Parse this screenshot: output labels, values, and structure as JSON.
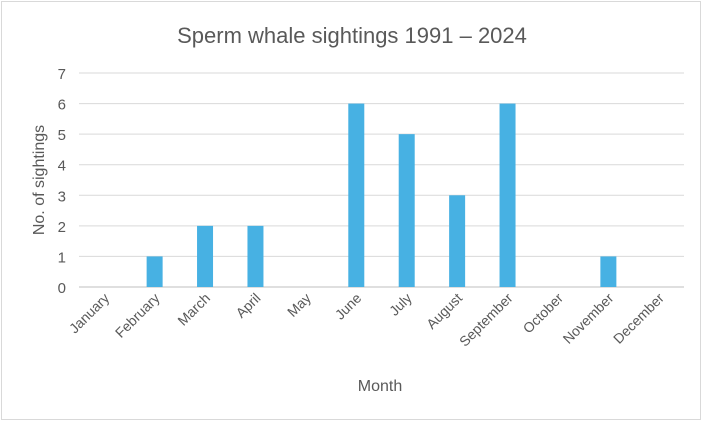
{
  "chart_data": {
    "type": "bar",
    "title": "Sperm whale sightings 1991 – 2024",
    "xlabel": "Month",
    "ylabel": "No. of sightings",
    "categories": [
      "January",
      "February",
      "March",
      "April",
      "May",
      "June",
      "July",
      "August",
      "September",
      "October",
      "November",
      "December"
    ],
    "values": [
      0,
      1,
      2,
      2,
      0,
      6,
      5,
      3,
      6,
      0,
      1,
      0
    ],
    "ylim": [
      0,
      7
    ],
    "yticks": [
      0,
      1,
      2,
      3,
      4,
      5,
      6,
      7
    ],
    "grid": true,
    "bar_color": "#47B1E3"
  }
}
